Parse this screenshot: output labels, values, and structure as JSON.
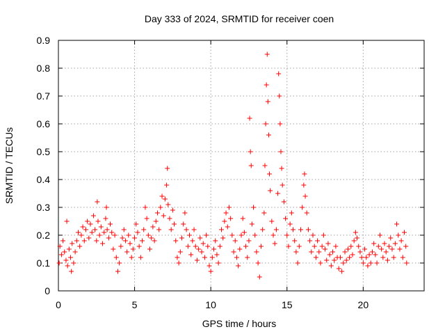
{
  "chart_data": {
    "type": "scatter",
    "title": "Day 333 of 2024, SRMTID for receiver coen",
    "xlabel": "GPS time / hours",
    "ylabel": "SRMTID / TECUs",
    "xlim": [
      0,
      24
    ],
    "ylim": [
      0,
      0.9
    ],
    "xticks": [
      "0",
      "5",
      "10",
      "15",
      "20"
    ],
    "xtick_values": [
      0,
      5,
      10,
      15,
      20
    ],
    "yticks": [
      "0",
      "0.1",
      "0.2",
      "0.3",
      "0.4",
      "0.5",
      "0.6",
      "0.7",
      "0.8",
      "0.9"
    ],
    "ytick_values": [
      0,
      0.1,
      0.2,
      0.3,
      0.4,
      0.5,
      0.6,
      0.7,
      0.8,
      0.9
    ],
    "grid": true,
    "marker": "+",
    "color": "#ff0000",
    "series": [
      {
        "name": "SRMTID",
        "points": [
          [
            0.05,
            0.1
          ],
          [
            0.1,
            0.16
          ],
          [
            0.2,
            0.13
          ],
          [
            0.3,
            0.18
          ],
          [
            0.4,
            0.14
          ],
          [
            0.5,
            0.11
          ],
          [
            0.55,
            0.25
          ],
          [
            0.6,
            0.09
          ],
          [
            0.7,
            0.15
          ],
          [
            0.8,
            0.12
          ],
          [
            0.85,
            0.07
          ],
          [
            0.9,
            0.17
          ],
          [
            1.0,
            0.1
          ],
          [
            1.1,
            0.14
          ],
          [
            1.2,
            0.18
          ],
          [
            1.3,
            0.21
          ],
          [
            1.4,
            0.16
          ],
          [
            1.5,
            0.2
          ],
          [
            1.6,
            0.23
          ],
          [
            1.7,
            0.18
          ],
          [
            1.8,
            0.22
          ],
          [
            1.9,
            0.25
          ],
          [
            2.0,
            0.19
          ],
          [
            2.1,
            0.24
          ],
          [
            2.2,
            0.21
          ],
          [
            2.3,
            0.27
          ],
          [
            2.4,
            0.22
          ],
          [
            2.5,
            0.18
          ],
          [
            2.55,
            0.32
          ],
          [
            2.6,
            0.25
          ],
          [
            2.7,
            0.2
          ],
          [
            2.8,
            0.23
          ],
          [
            2.9,
            0.17
          ],
          [
            3.0,
            0.21
          ],
          [
            3.1,
            0.26
          ],
          [
            3.15,
            0.3
          ],
          [
            3.2,
            0.22
          ],
          [
            3.3,
            0.19
          ],
          [
            3.4,
            0.24
          ],
          [
            3.5,
            0.21
          ],
          [
            3.6,
            0.15
          ],
          [
            3.7,
            0.2
          ],
          [
            3.8,
            0.12
          ],
          [
            3.9,
            0.07
          ],
          [
            4.0,
            0.1
          ],
          [
            4.1,
            0.16
          ],
          [
            4.2,
            0.19
          ],
          [
            4.3,
            0.22
          ],
          [
            4.4,
            0.18
          ],
          [
            4.5,
            0.14
          ],
          [
            4.6,
            0.2
          ],
          [
            4.7,
            0.17
          ],
          [
            4.8,
            0.12
          ],
          [
            4.9,
            0.15
          ],
          [
            5.0,
            0.19
          ],
          [
            5.1,
            0.24
          ],
          [
            5.2,
            0.21
          ],
          [
            5.3,
            0.16
          ],
          [
            5.4,
            0.12
          ],
          [
            5.5,
            0.18
          ],
          [
            5.6,
            0.22
          ],
          [
            5.7,
            0.3
          ],
          [
            5.8,
            0.26
          ],
          [
            5.9,
            0.2
          ],
          [
            6.0,
            0.15
          ],
          [
            6.1,
            0.19
          ],
          [
            6.2,
            0.23
          ],
          [
            6.3,
            0.18
          ],
          [
            6.4,
            0.25
          ],
          [
            6.5,
            0.28
          ],
          [
            6.6,
            0.22
          ],
          [
            6.7,
            0.3
          ],
          [
            6.8,
            0.34
          ],
          [
            6.9,
            0.27
          ],
          [
            7.0,
            0.33
          ],
          [
            7.1,
            0.38
          ],
          [
            7.15,
            0.44
          ],
          [
            7.2,
            0.31
          ],
          [
            7.3,
            0.26
          ],
          [
            7.4,
            0.22
          ],
          [
            7.5,
            0.29
          ],
          [
            7.6,
            0.24
          ],
          [
            7.7,
            0.18
          ],
          [
            7.8,
            0.12
          ],
          [
            7.9,
            0.1
          ],
          [
            8.0,
            0.14
          ],
          [
            8.1,
            0.19
          ],
          [
            8.2,
            0.24
          ],
          [
            8.3,
            0.28
          ],
          [
            8.4,
            0.22
          ],
          [
            8.5,
            0.16
          ],
          [
            8.6,
            0.2
          ],
          [
            8.7,
            0.13
          ],
          [
            8.8,
            0.18
          ],
          [
            8.9,
            0.22
          ],
          [
            9.0,
            0.16
          ],
          [
            9.1,
            0.11
          ],
          [
            9.2,
            0.15
          ],
          [
            9.3,
            0.19
          ],
          [
            9.4,
            0.14
          ],
          [
            9.5,
            0.17
          ],
          [
            9.6,
            0.12
          ],
          [
            9.7,
            0.2
          ],
          [
            9.8,
            0.16
          ],
          [
            9.9,
            0.09
          ],
          [
            10.0,
            0.07
          ],
          [
            10.1,
            0.12
          ],
          [
            10.2,
            0.15
          ],
          [
            10.3,
            0.18
          ],
          [
            10.4,
            0.13
          ],
          [
            10.5,
            0.1
          ],
          [
            10.6,
            0.16
          ],
          [
            10.7,
            0.22
          ],
          [
            10.8,
            0.19
          ],
          [
            10.9,
            0.25
          ],
          [
            11.0,
            0.28
          ],
          [
            11.1,
            0.23
          ],
          [
            11.2,
            0.3
          ],
          [
            11.3,
            0.26
          ],
          [
            11.4,
            0.2
          ],
          [
            11.5,
            0.14
          ],
          [
            11.6,
            0.18
          ],
          [
            11.7,
            0.12
          ],
          [
            11.8,
            0.09
          ],
          [
            11.9,
            0.15
          ],
          [
            12.0,
            0.2
          ],
          [
            12.1,
            0.26
          ],
          [
            12.2,
            0.21
          ],
          [
            12.3,
            0.16
          ],
          [
            12.4,
            0.12
          ],
          [
            12.5,
            0.18
          ],
          [
            12.55,
            0.62
          ],
          [
            12.6,
            0.5
          ],
          [
            12.65,
            0.45
          ],
          [
            12.7,
            0.24
          ],
          [
            12.8,
            0.3
          ],
          [
            12.9,
            0.2
          ],
          [
            13.0,
            0.14
          ],
          [
            13.1,
            0.1
          ],
          [
            13.2,
            0.05
          ],
          [
            13.3,
            0.16
          ],
          [
            13.4,
            0.22
          ],
          [
            13.5,
            0.28
          ],
          [
            13.55,
            0.45
          ],
          [
            13.6,
            0.6
          ],
          [
            13.65,
            0.74
          ],
          [
            13.7,
            0.85
          ],
          [
            13.75,
            0.68
          ],
          [
            13.8,
            0.56
          ],
          [
            13.85,
            0.42
          ],
          [
            13.9,
            0.36
          ],
          [
            14.0,
            0.25
          ],
          [
            14.1,
            0.2
          ],
          [
            14.2,
            0.17
          ],
          [
            14.3,
            0.22
          ],
          [
            14.4,
            0.35
          ],
          [
            14.45,
            0.78
          ],
          [
            14.5,
            0.7
          ],
          [
            14.55,
            0.6
          ],
          [
            14.6,
            0.5
          ],
          [
            14.65,
            0.44
          ],
          [
            14.7,
            0.38
          ],
          [
            14.8,
            0.32
          ],
          [
            14.9,
            0.26
          ],
          [
            15.0,
            0.2
          ],
          [
            15.1,
            0.16
          ],
          [
            15.2,
            0.24
          ],
          [
            15.3,
            0.28
          ],
          [
            15.4,
            0.22
          ],
          [
            15.5,
            0.18
          ],
          [
            15.6,
            0.14
          ],
          [
            15.7,
            0.1
          ],
          [
            15.8,
            0.16
          ],
          [
            15.9,
            0.22
          ],
          [
            16.0,
            0.3
          ],
          [
            16.1,
            0.38
          ],
          [
            16.15,
            0.42
          ],
          [
            16.2,
            0.34
          ],
          [
            16.3,
            0.28
          ],
          [
            16.4,
            0.22
          ],
          [
            16.5,
            0.18
          ],
          [
            16.6,
            0.14
          ],
          [
            16.7,
            0.2
          ],
          [
            16.8,
            0.16
          ],
          [
            16.9,
            0.12
          ],
          [
            17.0,
            0.18
          ],
          [
            17.1,
            0.14
          ],
          [
            17.2,
            0.1
          ],
          [
            17.3,
            0.16
          ],
          [
            17.4,
            0.2
          ],
          [
            17.5,
            0.15
          ],
          [
            17.6,
            0.11
          ],
          [
            17.7,
            0.17
          ],
          [
            17.8,
            0.13
          ],
          [
            17.9,
            0.09
          ],
          [
            18.0,
            0.14
          ],
          [
            18.1,
            0.11
          ],
          [
            18.2,
            0.16
          ],
          [
            18.3,
            0.12
          ],
          [
            18.4,
            0.08
          ],
          [
            18.5,
            0.12
          ],
          [
            18.6,
            0.07
          ],
          [
            18.7,
            0.1
          ],
          [
            18.8,
            0.14
          ],
          [
            18.9,
            0.11
          ],
          [
            19.0,
            0.15
          ],
          [
            19.1,
            0.12
          ],
          [
            19.2,
            0.16
          ],
          [
            19.3,
            0.13
          ],
          [
            19.4,
            0.18
          ],
          [
            19.5,
            0.21
          ],
          [
            19.6,
            0.19
          ],
          [
            19.7,
            0.16
          ],
          [
            19.8,
            0.14
          ],
          [
            19.9,
            0.12
          ],
          [
            20.0,
            0.1
          ],
          [
            20.1,
            0.15
          ],
          [
            20.2,
            0.12
          ],
          [
            20.3,
            0.09
          ],
          [
            20.4,
            0.13
          ],
          [
            20.5,
            0.1
          ],
          [
            20.6,
            0.14
          ],
          [
            20.7,
            0.17
          ],
          [
            20.8,
            0.13
          ],
          [
            20.9,
            0.1
          ],
          [
            21.0,
            0.16
          ],
          [
            21.1,
            0.2
          ],
          [
            21.2,
            0.15
          ],
          [
            21.3,
            0.12
          ],
          [
            21.4,
            0.17
          ],
          [
            21.5,
            0.14
          ],
          [
            21.6,
            0.11
          ],
          [
            21.7,
            0.16
          ],
          [
            21.8,
            0.19
          ],
          [
            21.9,
            0.15
          ],
          [
            22.0,
            0.12
          ],
          [
            22.1,
            0.17
          ],
          [
            22.2,
            0.24
          ],
          [
            22.3,
            0.2
          ],
          [
            22.4,
            0.15
          ],
          [
            22.5,
            0.18
          ],
          [
            22.6,
            0.12
          ],
          [
            22.7,
            0.21
          ],
          [
            22.8,
            0.16
          ],
          [
            22.85,
            0.1
          ]
        ]
      }
    ]
  }
}
